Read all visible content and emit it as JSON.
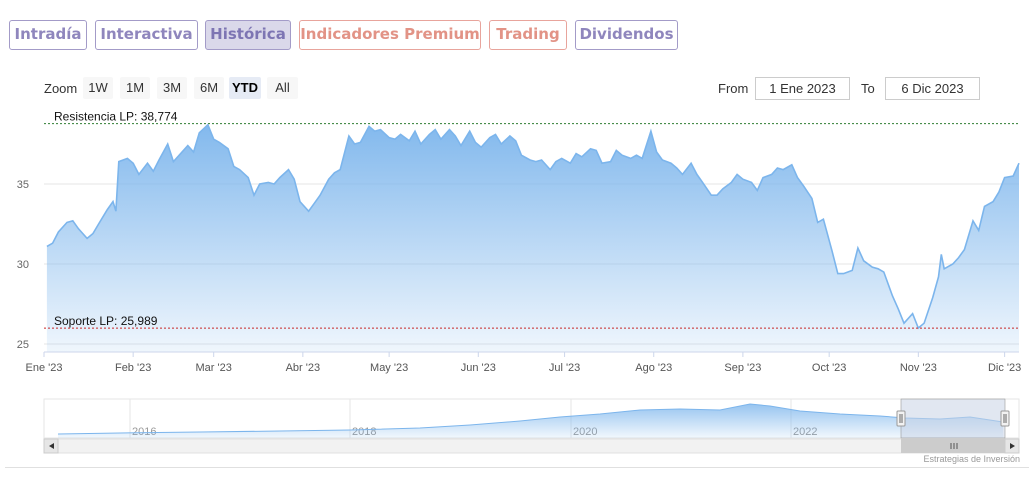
{
  "tabs": [
    {
      "label": "Intradía",
      "kind": "normal"
    },
    {
      "label": "Interactiva",
      "kind": "normal"
    },
    {
      "label": "Histórica",
      "kind": "active"
    },
    {
      "label": "Indicadores Premium",
      "kind": "premium"
    },
    {
      "label": "Trading",
      "kind": "premium"
    },
    {
      "label": "Dividendos",
      "kind": "normal"
    }
  ],
  "range_selector": {
    "zoom_label": "Zoom",
    "buttons": [
      "1W",
      "1M",
      "3M",
      "6M",
      "YTD",
      "All"
    ],
    "selected": "YTD",
    "from_label": "From",
    "from_value": "1 Ene 2023",
    "to_label": "To",
    "to_value": "6 Dic 2023"
  },
  "colors": {
    "line": "#7cb5ec",
    "fill_top": "#7cb5ec",
    "resistance": "#2e7d32",
    "support": "#c62828",
    "navigator_mask": "#c9d3e6"
  },
  "chart_data": {
    "type": "area",
    "x_tick_labels": [
      "Ene '23",
      "Feb '23",
      "Mar '23",
      "Abr '23",
      "May '23",
      "Jun '23",
      "Jul '23",
      "Ago '23",
      "Sep '23",
      "Oct '23",
      "Nov '23",
      "Dic '23"
    ],
    "y_ticks": [
      25,
      30,
      35
    ],
    "ylim": [
      24.5,
      39.5
    ],
    "annotations": [
      {
        "label": "Resistencia LP: 38,774",
        "value": 38.774,
        "kind": "resistance"
      },
      {
        "label": "Soporte LP: 25,989",
        "value": 25.989,
        "kind": "support"
      }
    ],
    "series": [
      {
        "points": [
          [
            "2023-01-02",
            31.1
          ],
          [
            "2023-01-04",
            31.3
          ],
          [
            "2023-01-06",
            32.0
          ],
          [
            "2023-01-09",
            32.6
          ],
          [
            "2023-01-11",
            32.7
          ],
          [
            "2023-01-13",
            32.2
          ],
          [
            "2023-01-16",
            31.6
          ],
          [
            "2023-01-18",
            31.9
          ],
          [
            "2023-01-20",
            32.5
          ],
          [
            "2023-01-23",
            33.4
          ],
          [
            "2023-01-25",
            33.9
          ],
          [
            "2023-01-26",
            33.3
          ],
          [
            "2023-01-27",
            36.4
          ],
          [
            "2023-01-30",
            36.6
          ],
          [
            "2023-02-01",
            36.3
          ],
          [
            "2023-02-03",
            35.6
          ],
          [
            "2023-02-06",
            36.3
          ],
          [
            "2023-02-08",
            35.8
          ],
          [
            "2023-02-10",
            36.5
          ],
          [
            "2023-02-13",
            37.5
          ],
          [
            "2023-02-15",
            36.4
          ],
          [
            "2023-02-17",
            36.8
          ],
          [
            "2023-02-20",
            37.4
          ],
          [
            "2023-02-22",
            37.0
          ],
          [
            "2023-02-24",
            38.2
          ],
          [
            "2023-02-27",
            38.7
          ],
          [
            "2023-03-01",
            37.8
          ],
          [
            "2023-03-03",
            37.6
          ],
          [
            "2023-03-06",
            37.2
          ],
          [
            "2023-03-08",
            36.1
          ],
          [
            "2023-03-10",
            35.9
          ],
          [
            "2023-03-13",
            35.4
          ],
          [
            "2023-03-15",
            34.3
          ],
          [
            "2023-03-17",
            35.0
          ],
          [
            "2023-03-20",
            35.1
          ],
          [
            "2023-03-22",
            35.0
          ],
          [
            "2023-03-24",
            35.4
          ],
          [
            "2023-03-27",
            35.9
          ],
          [
            "2023-03-29",
            35.3
          ],
          [
            "2023-03-31",
            33.9
          ],
          [
            "2023-04-03",
            33.3
          ],
          [
            "2023-04-05",
            33.8
          ],
          [
            "2023-04-07",
            34.3
          ],
          [
            "2023-04-10",
            35.3
          ],
          [
            "2023-04-12",
            35.7
          ],
          [
            "2023-04-14",
            35.9
          ],
          [
            "2023-04-17",
            38.0
          ],
          [
            "2023-04-19",
            37.5
          ],
          [
            "2023-04-21",
            37.6
          ],
          [
            "2023-04-24",
            38.6
          ],
          [
            "2023-04-26",
            38.3
          ],
          [
            "2023-04-28",
            38.4
          ],
          [
            "2023-05-01",
            37.9
          ],
          [
            "2023-05-03",
            37.8
          ],
          [
            "2023-05-05",
            38.1
          ],
          [
            "2023-05-08",
            37.7
          ],
          [
            "2023-05-10",
            38.3
          ],
          [
            "2023-05-12",
            37.5
          ],
          [
            "2023-05-15",
            38.1
          ],
          [
            "2023-05-17",
            38.4
          ],
          [
            "2023-05-19",
            37.8
          ],
          [
            "2023-05-22",
            38.4
          ],
          [
            "2023-05-24",
            38.0
          ],
          [
            "2023-05-26",
            37.4
          ],
          [
            "2023-05-29",
            38.3
          ],
          [
            "2023-05-31",
            37.6
          ],
          [
            "2023-06-02",
            37.3
          ],
          [
            "2023-06-05",
            37.9
          ],
          [
            "2023-06-07",
            38.1
          ],
          [
            "2023-06-09",
            37.5
          ],
          [
            "2023-06-12",
            38.0
          ],
          [
            "2023-06-14",
            37.7
          ],
          [
            "2023-06-16",
            36.8
          ],
          [
            "2023-06-19",
            36.5
          ],
          [
            "2023-06-21",
            36.4
          ],
          [
            "2023-06-23",
            36.5
          ],
          [
            "2023-06-26",
            35.9
          ],
          [
            "2023-06-28",
            36.4
          ],
          [
            "2023-06-30",
            36.6
          ],
          [
            "2023-07-03",
            36.3
          ],
          [
            "2023-07-05",
            36.9
          ],
          [
            "2023-07-07",
            36.7
          ],
          [
            "2023-07-10",
            37.2
          ],
          [
            "2023-07-12",
            37.1
          ],
          [
            "2023-07-14",
            36.3
          ],
          [
            "2023-07-17",
            36.4
          ],
          [
            "2023-07-19",
            37.1
          ],
          [
            "2023-07-21",
            36.8
          ],
          [
            "2023-07-24",
            36.6
          ],
          [
            "2023-07-26",
            36.8
          ],
          [
            "2023-07-28",
            36.6
          ],
          [
            "2023-07-31",
            38.3
          ],
          [
            "2023-08-02",
            37.0
          ],
          [
            "2023-08-04",
            36.5
          ],
          [
            "2023-08-07",
            36.3
          ],
          [
            "2023-08-09",
            36.0
          ],
          [
            "2023-08-11",
            35.6
          ],
          [
            "2023-08-14",
            36.3
          ],
          [
            "2023-08-16",
            35.6
          ],
          [
            "2023-08-18",
            35.1
          ],
          [
            "2023-08-21",
            34.3
          ],
          [
            "2023-08-23",
            34.3
          ],
          [
            "2023-08-25",
            34.7
          ],
          [
            "2023-08-28",
            35.1
          ],
          [
            "2023-08-30",
            35.6
          ],
          [
            "2023-09-01",
            35.3
          ],
          [
            "2023-09-04",
            35.1
          ],
          [
            "2023-09-06",
            34.6
          ],
          [
            "2023-09-08",
            35.4
          ],
          [
            "2023-09-11",
            35.6
          ],
          [
            "2023-09-13",
            36.0
          ],
          [
            "2023-09-15",
            35.9
          ],
          [
            "2023-09-18",
            36.2
          ],
          [
            "2023-09-20",
            35.4
          ],
          [
            "2023-09-22",
            34.9
          ],
          [
            "2023-09-25",
            34.1
          ],
          [
            "2023-09-27",
            32.6
          ],
          [
            "2023-09-29",
            32.8
          ],
          [
            "2023-10-02",
            30.8
          ],
          [
            "2023-10-04",
            29.4
          ],
          [
            "2023-10-06",
            29.4
          ],
          [
            "2023-10-09",
            29.6
          ],
          [
            "2023-10-11",
            31.0
          ],
          [
            "2023-10-13",
            30.2
          ],
          [
            "2023-10-16",
            29.8
          ],
          [
            "2023-10-18",
            29.7
          ],
          [
            "2023-10-20",
            29.5
          ],
          [
            "2023-10-23",
            28.0
          ],
          [
            "2023-10-25",
            27.2
          ],
          [
            "2023-10-27",
            26.3
          ],
          [
            "2023-10-30",
            26.9
          ],
          [
            "2023-11-01",
            26.0
          ],
          [
            "2023-11-03",
            26.3
          ],
          [
            "2023-11-06",
            27.9
          ],
          [
            "2023-11-08",
            29.2
          ],
          [
            "2023-11-09",
            30.6
          ],
          [
            "2023-11-10",
            29.7
          ],
          [
            "2023-11-13",
            30.0
          ],
          [
            "2023-11-15",
            30.4
          ],
          [
            "2023-11-17",
            30.9
          ],
          [
            "2023-11-20",
            32.7
          ],
          [
            "2023-11-22",
            32.1
          ],
          [
            "2023-11-24",
            33.6
          ],
          [
            "2023-11-27",
            33.9
          ],
          [
            "2023-11-29",
            34.5
          ],
          [
            "2023-12-01",
            35.4
          ],
          [
            "2023-12-04",
            35.5
          ],
          [
            "2023-12-06",
            36.3
          ]
        ]
      }
    ],
    "navigator": {
      "year_labels": [
        "2016",
        "2018",
        "2020",
        "2022"
      ]
    }
  },
  "credits": "Estrategias de Inversión"
}
